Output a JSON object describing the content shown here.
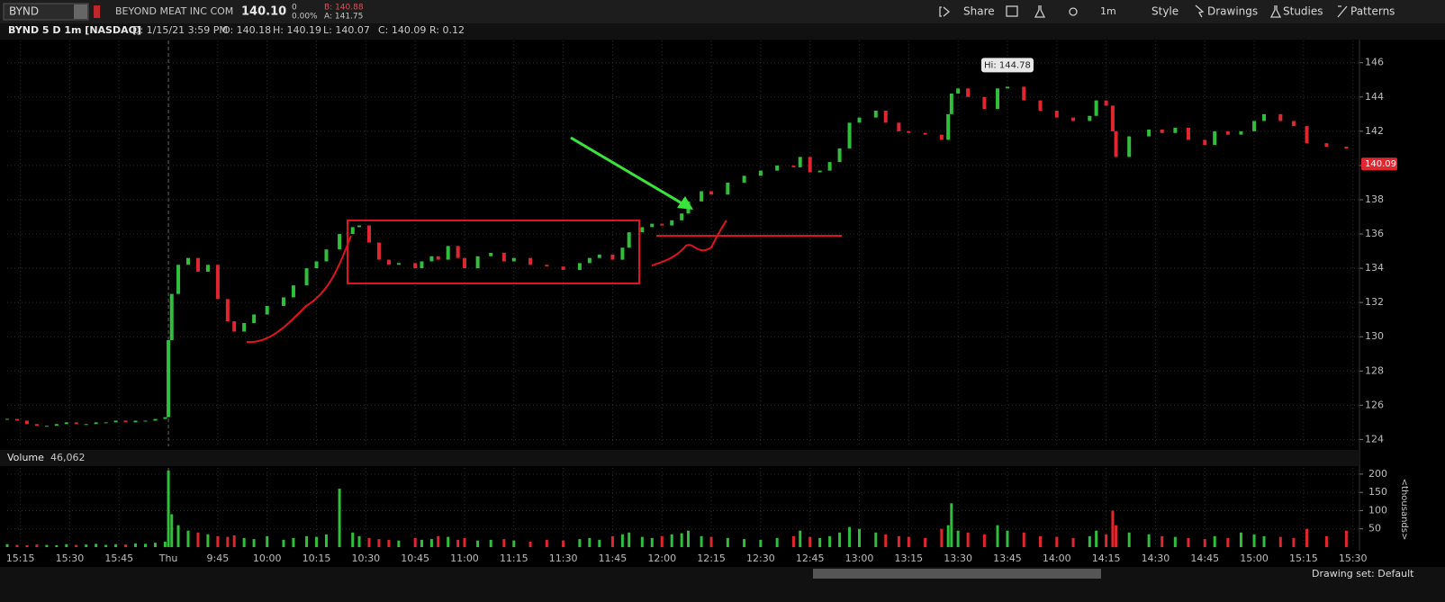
{
  "header": {
    "symbol": "BYND",
    "company": "BEYOND MEAT INC COM",
    "last": "140.10",
    "change": "0",
    "change_pct": "0.00%",
    "bid": "B: 140.88",
    "ask": "A: 141.75",
    "buttons": [
      "Share",
      "1m",
      "Style",
      "Drawings",
      "Studies",
      "Patterns"
    ]
  },
  "info_bar": [
    "D: 1/15/21 3:59 PM",
    "O: 140.18",
    "H: 140.19",
    "L: 140.07",
    "C: 140.09",
    "R: 0.12"
  ],
  "footer": "Drawing set: Default",
  "chart_data": [
    {
      "type": "candlestick",
      "title": "BYND 5 D 1m [NASDAQ]",
      "up_color": "#2fbf3a",
      "down_color": "#e0272f",
      "grid": true,
      "last_price": 140.09,
      "annotation": "Hi: 144.78",
      "x": [
        0,
        3,
        6,
        9,
        12,
        15,
        18,
        21,
        24,
        27,
        30,
        33,
        36,
        39,
        42,
        45,
        48,
        49,
        50,
        52,
        55,
        58,
        61,
        64,
        67,
        69,
        72,
        75,
        79,
        84,
        87,
        91,
        94,
        97,
        101,
        105,
        107,
        110,
        113,
        116,
        119,
        124,
        126,
        129,
        131,
        134,
        137,
        139,
        143,
        147,
        151,
        154,
        159,
        164,
        169,
        174,
        177,
        180,
        184,
        187,
        189,
        193,
        196,
        199,
        202,
        205,
        207,
        211,
        214,
        219,
        224,
        229,
        234,
        239,
        241,
        244,
        247,
        250,
        253,
        256,
        259,
        264,
        267,
        271,
        274,
        279,
        284,
        286,
        287,
        289,
        292,
        297,
        301,
        304,
        309,
        314,
        319,
        324,
        329,
        331,
        334,
        336,
        337,
        341,
        347,
        351,
        355,
        359,
        364,
        367,
        371,
        375,
        379,
        382,
        387,
        391,
        395,
        401,
        407
      ],
      "values": [
        125.2,
        125.1,
        124.9,
        124.8,
        124.8,
        124.9,
        125.0,
        124.9,
        124.9,
        125.0,
        125.0,
        125.1,
        125.0,
        125.1,
        125.1,
        125.2,
        125.3,
        129.8,
        132.5,
        134.2,
        134.6,
        133.8,
        134.2,
        132.2,
        130.9,
        130.3,
        130.8,
        131.3,
        131.8,
        132.3,
        133.0,
        134.0,
        134.4,
        135.1,
        136.0,
        136.4,
        136.5,
        135.5,
        134.5,
        134.2,
        134.3,
        134.0,
        134.4,
        134.7,
        134.5,
        135.3,
        134.6,
        134.0,
        134.7,
        134.9,
        134.4,
        134.6,
        134.2,
        134.1,
        133.9,
        134.3,
        134.6,
        134.8,
        134.5,
        135.2,
        136.1,
        136.4,
        136.6,
        136.5,
        136.8,
        137.2,
        137.9,
        138.5,
        138.3,
        139.0,
        139.4,
        139.7,
        140.0,
        139.9,
        140.5,
        139.6,
        139.7,
        140.2,
        141.0,
        142.5,
        142.8,
        143.2,
        142.5,
        142.0,
        141.9,
        141.8,
        141.5,
        143.0,
        144.2,
        144.5,
        144.0,
        143.3,
        144.5,
        144.6,
        143.8,
        143.2,
        142.8,
        142.6,
        142.9,
        143.8,
        143.5,
        142.0,
        140.5,
        141.7,
        142.1,
        141.9,
        142.2,
        141.5,
        141.2,
        142.0,
        141.8,
        142.0,
        142.6,
        143.0,
        142.6,
        142.3,
        141.3,
        141.1,
        141.0
      ],
      "xlim": [
        0,
        411
      ],
      "xticks": [
        {
          "value": 4,
          "label": "15:15"
        },
        {
          "value": 19,
          "label": "15:30"
        },
        {
          "value": 34,
          "label": "15:45"
        },
        {
          "value": 49,
          "label": "Thu"
        },
        {
          "value": 64,
          "label": "9:45"
        },
        {
          "value": 79,
          "label": "10:00"
        },
        {
          "value": 94,
          "label": "10:15"
        },
        {
          "value": 109,
          "label": "10:30"
        },
        {
          "value": 124,
          "label": "10:45"
        },
        {
          "value": 139,
          "label": "11:00"
        },
        {
          "value": 154,
          "label": "11:15"
        },
        {
          "value": 169,
          "label": "11:30"
        },
        {
          "value": 184,
          "label": "11:45"
        },
        {
          "value": 199,
          "label": "12:00"
        },
        {
          "value": 214,
          "label": "12:15"
        },
        {
          "value": 229,
          "label": "12:30"
        },
        {
          "value": 244,
          "label": "12:45"
        },
        {
          "value": 259,
          "label": "13:00"
        },
        {
          "value": 274,
          "label": "13:15"
        },
        {
          "value": 289,
          "label": "13:30"
        },
        {
          "value": 304,
          "label": "13:45"
        },
        {
          "value": 319,
          "label": "14:00"
        },
        {
          "value": 334,
          "label": "14:15"
        },
        {
          "value": 349,
          "label": "14:30"
        },
        {
          "value": 364,
          "label": "14:45"
        },
        {
          "value": 379,
          "label": "15:00"
        },
        {
          "value": 394,
          "label": "15:15"
        },
        {
          "value": 409,
          "label": "15:30"
        }
      ],
      "ylim": [
        123.6,
        147.3
      ],
      "yticks": [
        124,
        126,
        128,
        130,
        132,
        134,
        136,
        138,
        140,
        142,
        144,
        146
      ]
    },
    {
      "type": "bar",
      "title": "Volume",
      "subtitle": "46,062",
      "y_label": "<thousands>",
      "up_color": "#2fbf3a",
      "down_color": "#e0272f",
      "grid": true,
      "x": [
        0,
        3,
        6,
        9,
        12,
        15,
        18,
        21,
        24,
        27,
        30,
        33,
        36,
        39,
        42,
        45,
        48,
        49,
        50,
        52,
        55,
        58,
        61,
        64,
        67,
        69,
        72,
        75,
        79,
        84,
        87,
        91,
        94,
        97,
        101,
        105,
        107,
        110,
        113,
        116,
        119,
        124,
        126,
        129,
        131,
        134,
        137,
        139,
        143,
        147,
        151,
        154,
        159,
        164,
        169,
        174,
        177,
        180,
        184,
        187,
        189,
        193,
        196,
        199,
        202,
        205,
        207,
        211,
        214,
        219,
        224,
        229,
        234,
        239,
        241,
        244,
        247,
        250,
        253,
        256,
        259,
        264,
        267,
        271,
        274,
        279,
        284,
        286,
        287,
        289,
        292,
        297,
        301,
        304,
        309,
        314,
        319,
        324,
        329,
        331,
        334,
        336,
        337,
        341,
        347,
        351,
        355,
        359,
        364,
        367,
        371,
        375,
        379,
        382,
        387,
        391,
        395,
        401,
        407
      ],
      "values": [
        8,
        6,
        5,
        7,
        6,
        5,
        8,
        6,
        7,
        9,
        6,
        8,
        7,
        10,
        9,
        12,
        15,
        210,
        90,
        60,
        45,
        40,
        35,
        30,
        28,
        32,
        25,
        22,
        30,
        20,
        25,
        30,
        28,
        35,
        160,
        40,
        30,
        25,
        22,
        20,
        18,
        25,
        20,
        22,
        30,
        28,
        20,
        25,
        18,
        20,
        22,
        18,
        15,
        20,
        18,
        22,
        25,
        20,
        30,
        35,
        40,
        28,
        25,
        30,
        35,
        38,
        45,
        30,
        28,
        25,
        22,
        20,
        25,
        30,
        45,
        28,
        25,
        30,
        40,
        55,
        50,
        40,
        35,
        30,
        28,
        25,
        50,
        60,
        120,
        45,
        40,
        35,
        60,
        45,
        40,
        30,
        28,
        25,
        30,
        45,
        35,
        100,
        60,
        40,
        35,
        30,
        28,
        25,
        22,
        30,
        25,
        40,
        35,
        30,
        28,
        25,
        50,
        30,
        45
      ],
      "xlim": [
        0,
        411
      ],
      "ylim": [
        0,
        217
      ],
      "yticks": [
        50,
        100,
        150,
        200
      ]
    }
  ]
}
